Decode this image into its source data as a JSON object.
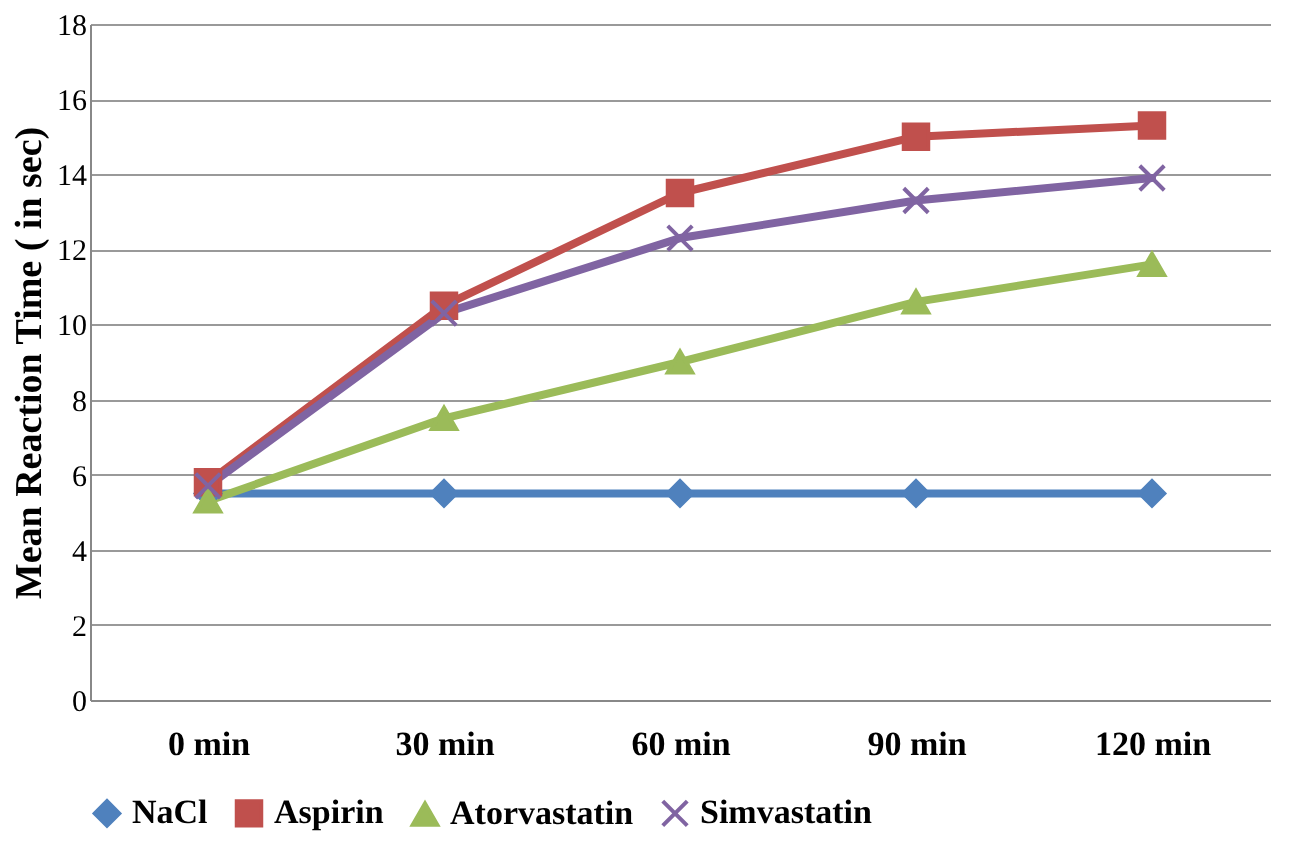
{
  "chart_data": {
    "type": "line",
    "ylabel": "Mean Reaction Time ( in sec)",
    "categories": [
      "0 min",
      "30 min",
      "60 min",
      "90 min",
      "120 min"
    ],
    "ylim": [
      0,
      18
    ],
    "yticks": [
      0,
      2,
      4,
      6,
      8,
      10,
      12,
      14,
      16,
      18
    ],
    "grid": "y",
    "legend": "bottom",
    "line_style": "solid",
    "series": [
      {
        "name": "NaCl",
        "color": "#4f81bd",
        "marker": "diamond",
        "values": [
          5.5,
          5.5,
          5.5,
          5.5,
          5.5
        ]
      },
      {
        "name": "Aspirin",
        "color": "#c0504d",
        "marker": "square",
        "values": [
          5.8,
          10.5,
          13.5,
          15.0,
          15.3
        ]
      },
      {
        "name": "Atorvastatin",
        "color": "#9bbb59",
        "marker": "triangle",
        "values": [
          5.3,
          7.5,
          9.0,
          10.6,
          11.6
        ]
      },
      {
        "name": "Simvastatin",
        "color": "#8064a2",
        "marker": "cross",
        "values": [
          5.7,
          10.3,
          12.3,
          13.3,
          13.9
        ]
      }
    ]
  }
}
